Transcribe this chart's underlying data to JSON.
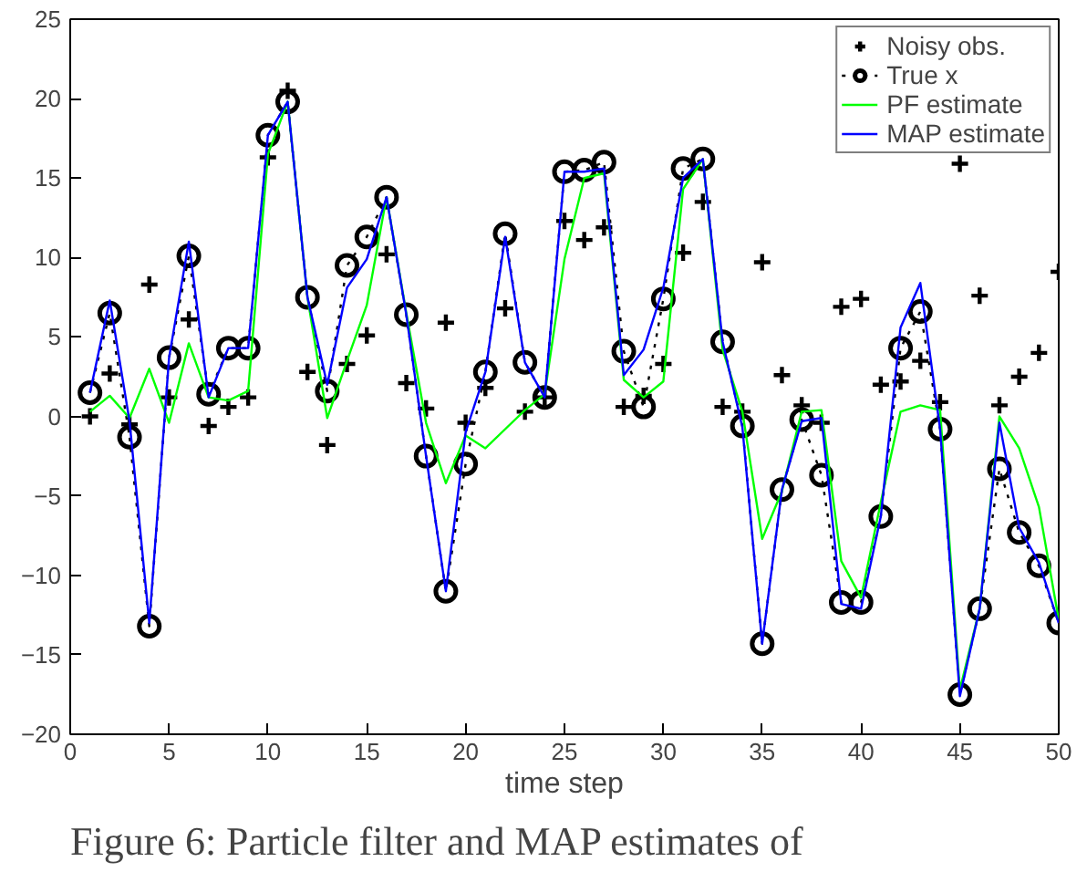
{
  "chart_data": {
    "type": "line",
    "xlabel": "time step",
    "annotations": [
      "Figure 6: Particle filter and MAP estimates of"
    ],
    "x": [
      1,
      2,
      3,
      4,
      5,
      6,
      7,
      8,
      9,
      10,
      11,
      12,
      13,
      14,
      15,
      16,
      17,
      18,
      19,
      20,
      21,
      22,
      23,
      24,
      25,
      26,
      27,
      28,
      29,
      30,
      31,
      32,
      33,
      34,
      35,
      36,
      37,
      38,
      39,
      40,
      41,
      42,
      43,
      44,
      45,
      46,
      47,
      48,
      49,
      50
    ],
    "series": [
      {
        "name": "Noisy obs.",
        "type": "scatter",
        "marker": "cross",
        "color": "#000000",
        "values": [
          0.0,
          2.7,
          -0.5,
          8.3,
          1.2,
          6.1,
          -0.6,
          0.6,
          1.2,
          16.3,
          20.5,
          2.8,
          -1.8,
          3.3,
          5.1,
          10.2,
          2.1,
          0.5,
          5.9,
          -0.4,
          1.8,
          6.8,
          0.3,
          1.2,
          12.3,
          11.1,
          11.9,
          0.6,
          1.3,
          3.3,
          10.3,
          13.5,
          0.6,
          0.3,
          9.7,
          2.6,
          0.7,
          -0.4,
          6.9,
          7.4,
          2.0,
          2.2,
          3.5,
          0.9,
          15.9,
          7.6,
          0.7,
          2.5,
          4.0,
          9.1
        ]
      },
      {
        "name": "True x",
        "type": "line",
        "marker": "circle",
        "line_style": "dotted",
        "color": "#000000",
        "values": [
          1.5,
          6.5,
          -1.3,
          -13.2,
          3.7,
          10.1,
          1.4,
          4.3,
          4.3,
          17.7,
          19.8,
          7.5,
          1.6,
          9.5,
          11.3,
          13.8,
          6.4,
          -2.5,
          -11.0,
          -3.0,
          2.8,
          11.5,
          3.4,
          1.2,
          15.4,
          15.5,
          16.0,
          4.1,
          0.6,
          7.4,
          15.6,
          16.2,
          4.7,
          -0.6,
          -14.3,
          -4.6,
          -0.2,
          -3.7,
          -11.7,
          -11.7,
          -6.3,
          4.3,
          6.6,
          -0.8,
          -17.5,
          -12.1,
          -3.3,
          -7.3,
          -9.4,
          -13.0
        ]
      },
      {
        "name": "PF estimate",
        "marker": "none",
        "line_style": "solid",
        "color": "#00ff00",
        "values": [
          0.3,
          1.3,
          -0.1,
          3.0,
          -0.4,
          4.6,
          1.2,
          1.0,
          1.6,
          16.5,
          19.8,
          7.5,
          -0.1,
          3.5,
          7.0,
          13.8,
          6.5,
          -0.4,
          -4.2,
          -1.2,
          -2.0,
          -0.8,
          0.4,
          1.4,
          9.9,
          15.0,
          15.3,
          2.3,
          1.2,
          2.2,
          14.3,
          16.2,
          4.2,
          0.3,
          -7.7,
          -4.7,
          0.3,
          0.4,
          -9.1,
          -11.4,
          -5.4,
          0.3,
          0.7,
          0.4,
          -17.2,
          -12.1,
          0.0,
          -2.0,
          -5.7,
          -12.8
        ]
      },
      {
        "name": "MAP estimate",
        "marker": "none",
        "line_style": "solid",
        "color": "#0000ff",
        "values": [
          1.5,
          7.3,
          -0.3,
          -13.0,
          3.7,
          11.0,
          1.2,
          4.3,
          4.3,
          17.7,
          19.8,
          7.5,
          2.0,
          8.1,
          9.9,
          13.8,
          6.4,
          -2.5,
          -11.0,
          -1.0,
          2.8,
          11.3,
          3.4,
          1.2,
          15.4,
          15.4,
          15.6,
          2.6,
          4.2,
          8.1,
          15.0,
          16.2,
          4.7,
          -0.7,
          -14.3,
          -4.6,
          -0.3,
          -0.1,
          -11.8,
          -12.1,
          -6.3,
          5.6,
          8.4,
          -0.8,
          -17.6,
          -12.1,
          -0.4,
          -7.0,
          -9.2,
          -13.0
        ]
      }
    ],
    "xlim": [
      0,
      50
    ],
    "ylim": [
      -20,
      25
    ],
    "xticks": [
      0,
      5,
      10,
      15,
      20,
      25,
      30,
      35,
      40,
      45,
      50
    ],
    "yticks": [
      -20,
      -15,
      -10,
      -5,
      0,
      5,
      10,
      15,
      20,
      25
    ],
    "grid": false,
    "legend": "top right"
  }
}
